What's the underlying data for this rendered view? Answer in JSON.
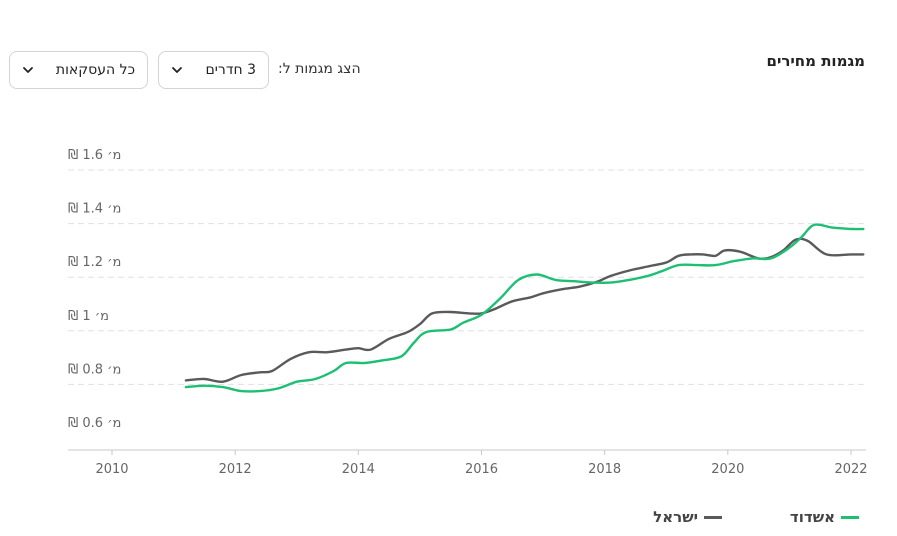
{
  "header": {
    "title": "מגמות מחירים",
    "filter_prefix": "הצג מגמות ל:",
    "rooms_value": "3 חדרים",
    "deals_value": "כל העסקאות"
  },
  "colors": {
    "ashdod": "#1dbf73",
    "israel": "#5a5a5a",
    "grid": "#e0e0e0",
    "axis": "#c8c8c8"
  },
  "legend": {
    "ashdod": "אשדוד",
    "israel": "ישראל"
  },
  "chart_data": {
    "type": "line",
    "y_unit_prefix": "₪",
    "y_unit_suffix": "מ׳",
    "ylim": [
      0.6,
      1.6
    ],
    "yticks": [
      0.6,
      0.8,
      1,
      1.2,
      1.4,
      1.6
    ],
    "ytick_labels": [
      "0.6",
      "0.8",
      "1",
      "1.2",
      "1.4",
      "1.6"
    ],
    "xlim": [
      2010,
      2022.2
    ],
    "xticks": [
      2010,
      2012,
      2014,
      2016,
      2018,
      2020,
      2022
    ],
    "xtick_labels": [
      "2010",
      "2012",
      "2014",
      "2016",
      "2018",
      "2020",
      "2022"
    ],
    "grid": true,
    "legend_position": "bottom-right",
    "series": [
      {
        "name": "אשדוד",
        "color_key": "ashdod",
        "x": [
          2011.2,
          2011.5,
          2011.8,
          2012.1,
          2012.4,
          2012.7,
          2013.0,
          2013.3,
          2013.6,
          2013.8,
          2014.1,
          2014.4,
          2014.7,
          2014.9,
          2015.1,
          2015.5,
          2015.7,
          2016.0,
          2016.3,
          2016.6,
          2016.9,
          2017.2,
          2017.5,
          2017.8,
          2018.1,
          2018.4,
          2018.7,
          2018.9,
          2019.2,
          2019.5,
          2019.8,
          2020.1,
          2020.4,
          2020.7,
          2021.0,
          2021.2,
          2021.4,
          2021.7,
          2022.0,
          2022.2
        ],
        "y": [
          0.79,
          0.795,
          0.79,
          0.775,
          0.775,
          0.785,
          0.81,
          0.82,
          0.85,
          0.88,
          0.88,
          0.89,
          0.905,
          0.955,
          0.995,
          1.005,
          1.03,
          1.06,
          1.12,
          1.19,
          1.21,
          1.19,
          1.185,
          1.18,
          1.18,
          1.19,
          1.205,
          1.22,
          1.245,
          1.245,
          1.245,
          1.26,
          1.27,
          1.27,
          1.31,
          1.35,
          1.395,
          1.385,
          1.38,
          1.38
        ]
      },
      {
        "name": "ישראל",
        "color_key": "israel",
        "x": [
          2011.2,
          2011.5,
          2011.8,
          2012.1,
          2012.4,
          2012.6,
          2012.9,
          2013.2,
          2013.5,
          2013.8,
          2014.0,
          2014.2,
          2014.5,
          2014.8,
          2015.0,
          2015.2,
          2015.5,
          2015.8,
          2016.0,
          2016.2,
          2016.5,
          2016.8,
          2017.0,
          2017.3,
          2017.6,
          2017.9,
          2018.1,
          2018.4,
          2018.7,
          2019.0,
          2019.2,
          2019.4,
          2019.6,
          2019.8,
          2019.95,
          2020.2,
          2020.5,
          2020.7,
          2020.9,
          2021.1,
          2021.3,
          2021.6,
          2022.0,
          2022.2
        ],
        "y": [
          0.815,
          0.82,
          0.81,
          0.835,
          0.845,
          0.85,
          0.895,
          0.92,
          0.92,
          0.93,
          0.935,
          0.93,
          0.97,
          0.995,
          1.025,
          1.065,
          1.07,
          1.065,
          1.065,
          1.08,
          1.11,
          1.125,
          1.14,
          1.155,
          1.165,
          1.185,
          1.205,
          1.225,
          1.24,
          1.255,
          1.28,
          1.285,
          1.285,
          1.28,
          1.3,
          1.295,
          1.27,
          1.275,
          1.3,
          1.34,
          1.335,
          1.285,
          1.285,
          1.285
        ]
      }
    ]
  }
}
